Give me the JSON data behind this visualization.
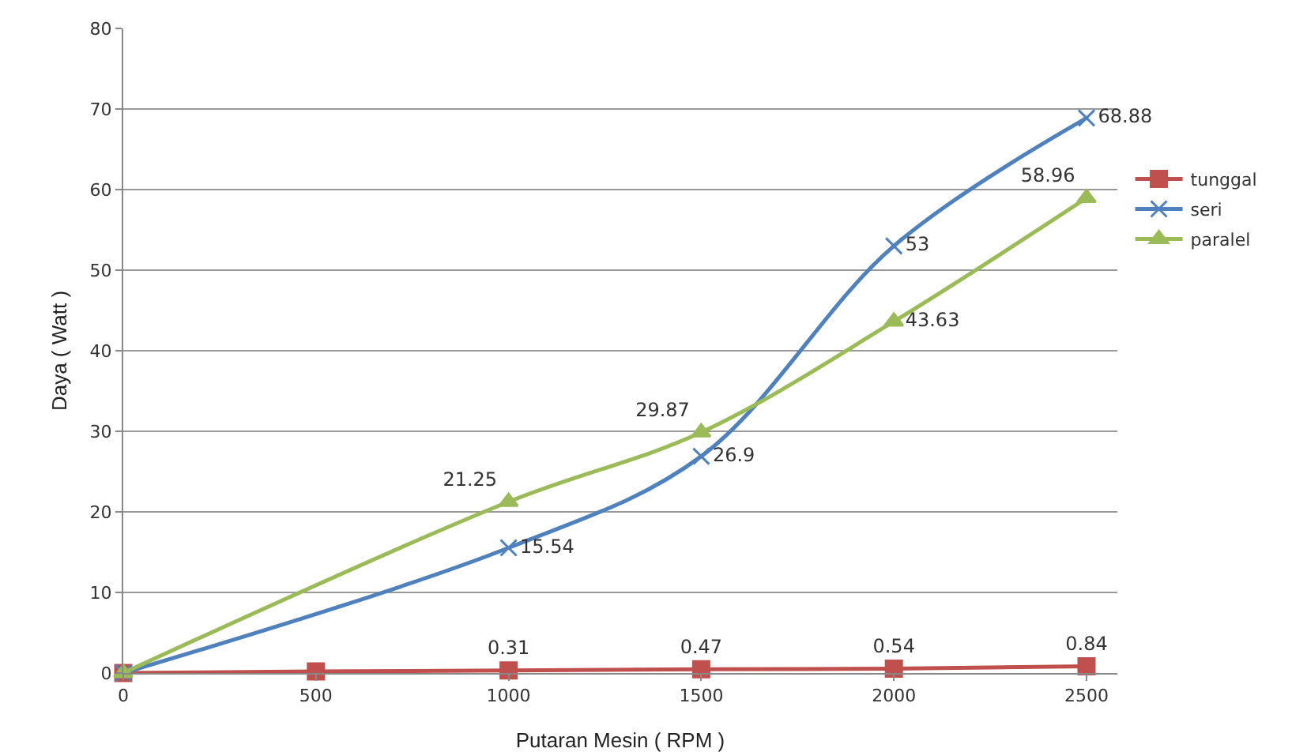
{
  "chart_data": {
    "type": "line",
    "xlabel": "Putaran Mesin ( RPM )",
    "ylabel": "Daya ( Watt )",
    "xlim": [
      0,
      2580
    ],
    "xticks": [
      0,
      500,
      1000,
      1500,
      2000,
      2500
    ],
    "ylim": [
      0,
      80
    ],
    "yticks": [
      0,
      10,
      20,
      30,
      40,
      50,
      60,
      70,
      80
    ],
    "grid": "y",
    "legend": "right",
    "series": [
      {
        "name": "tunggal",
        "color": "#c0504d",
        "marker": "square",
        "x": [
          0,
          500,
          1000,
          1500,
          2000,
          2500
        ],
        "values": [
          0,
          0.2,
          0.31,
          0.47,
          0.54,
          0.84
        ],
        "value_labels": [
          null,
          null,
          "0.31",
          "0.47",
          "0.54",
          "0.84"
        ]
      },
      {
        "name": "seri",
        "color": "#4f81bd",
        "marker": "cross",
        "x": [
          0,
          1000,
          1500,
          2000,
          2500
        ],
        "values": [
          0,
          15.54,
          26.9,
          53,
          68.88
        ],
        "value_labels": [
          null,
          "15.54",
          "26.9",
          "53",
          "68.88"
        ]
      },
      {
        "name": "paralel",
        "color": "#9bbb59",
        "marker": "triangle",
        "x": [
          0,
          1000,
          1500,
          2000,
          2500
        ],
        "values": [
          0,
          21.25,
          29.87,
          43.63,
          58.96
        ],
        "value_labels": [
          null,
          "21.25",
          "29.87",
          "43.63",
          "58.96"
        ]
      }
    ]
  }
}
